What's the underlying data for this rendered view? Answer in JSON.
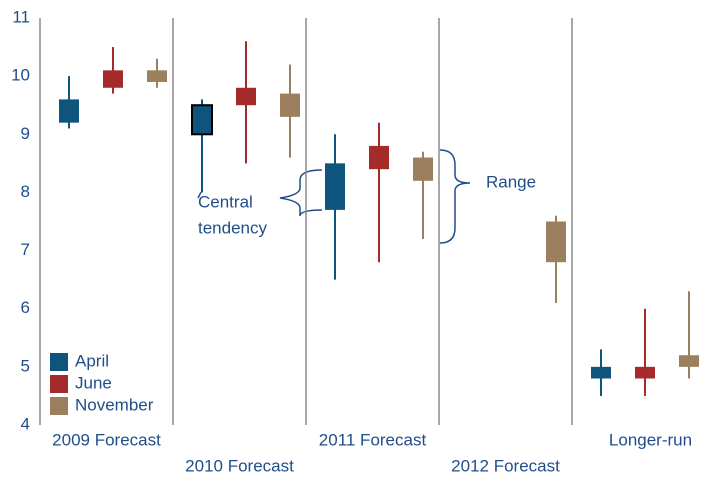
{
  "chart_data": {
    "type": "candlestick",
    "categories": [
      "2009 Forecast",
      "2010 Forecast",
      "2011 Forecast",
      "2012 Forecast",
      "Longer-run"
    ],
    "series": [
      {
        "name": "April",
        "color": "#0f547c",
        "low": [
          9.1,
          8.0,
          6.5,
          null,
          4.5
        ],
        "high": [
          10.0,
          9.6,
          9.0,
          null,
          5.3
        ],
        "ct_low": [
          9.2,
          9.0,
          7.7,
          null,
          4.8
        ],
        "ct_high": [
          9.6,
          9.5,
          8.5,
          null,
          5.0
        ]
      },
      {
        "name": "June",
        "color": "#a52a2a",
        "low": [
          9.7,
          8.5,
          6.8,
          null,
          4.5
        ],
        "high": [
          10.5,
          10.6,
          9.2,
          null,
          6.0
        ],
        "ct_low": [
          9.8,
          9.5,
          8.4,
          null,
          4.8
        ],
        "ct_high": [
          10.1,
          9.8,
          8.8,
          null,
          5.0
        ]
      },
      {
        "name": "November",
        "color": "#9c7f5e",
        "low": [
          9.8,
          8.6,
          7.2,
          6.1,
          4.8
        ],
        "high": [
          10.3,
          10.2,
          8.7,
          7.6,
          6.3
        ],
        "ct_low": [
          9.9,
          9.3,
          8.2,
          6.8,
          5.0
        ],
        "ct_high": [
          10.1,
          9.7,
          8.6,
          7.5,
          5.2
        ]
      }
    ],
    "ylim": [
      4,
      11
    ],
    "yticks": [
      4,
      5,
      6,
      7,
      8,
      9,
      10,
      11
    ],
    "highlight": {
      "series": 0,
      "index": 1
    },
    "annotations": {
      "central_tendency": [
        "Central",
        "tendency"
      ],
      "range": "Range"
    },
    "legend": "lower left"
  }
}
